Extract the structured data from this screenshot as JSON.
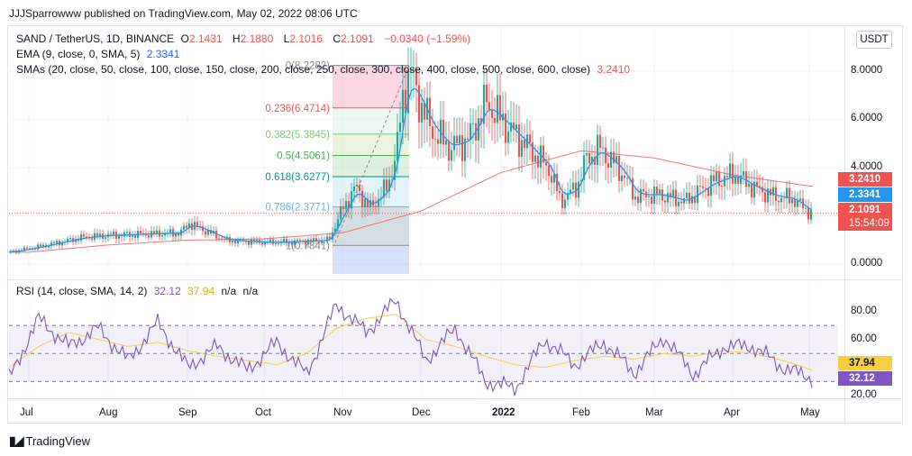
{
  "header_note": "JJJSparrowww published on TradingView.com, May 02, 2022 08:06 UTC",
  "legend": {
    "symbol": "SAND / TetherUS, 1D, BINANCE",
    "o_label": "O",
    "o_val": "2.1431",
    "h_label": "H",
    "h_val": "2.1880",
    "l_label": "L",
    "l_val": "2.1016",
    "c_label": "C",
    "c_val": "2.1091",
    "change": "−0.0340 (−1.59%)",
    "ema_label": "EMA (9, close, 0, SMA, 5)",
    "ema_val": "2.3341",
    "sma_label": "SMAs (20, close, 50, close, 100, close, 150, close, 200, close, 250, close, 300, close, 400, close, 500, close, 600, close)",
    "sma_val": "3.2410",
    "rsi_label": "RSI (14, close, SMA, 14, 2)",
    "rsi_val": "32.12",
    "rsi_ma_val": "37.94",
    "rsi_na1": "n/a",
    "rsi_na2": "n/a"
  },
  "currency_button": "USDT",
  "badges": {
    "sma": "3.2410",
    "ema": "2.3341",
    "price": "2.1091",
    "countdown": "15:54:09",
    "rsi_ma": "37.94",
    "rsi": "32.12"
  },
  "brand": "TradingView",
  "colors": {
    "up": "#26a69a",
    "down": "#ef5350",
    "ema": "#2196f3",
    "sma": "#ef5350",
    "rsi": "#7e57c2",
    "rsi_ma": "#f5d142",
    "rsi_band": "#ede7f6"
  },
  "chart_data": [
    {
      "type": "candlestick",
      "title": "SAND / TetherUS, 1D, BINANCE",
      "x_ticks": [
        "Jul",
        "Aug",
        "Sep",
        "Oct",
        "Nov",
        "Dec",
        "2022",
        "Feb",
        "Mar",
        "Apr",
        "May"
      ],
      "y_ticks": [
        "8.0000",
        "6.0000",
        "4.0000",
        "2.0000",
        "0.0000"
      ],
      "ylim": [
        -0.4,
        8.7
      ],
      "y_tick_values": [
        8,
        6,
        4,
        2,
        0
      ],
      "fibonacci": [
        {
          "label": "0(8.2282)",
          "value": 8.2282
        },
        {
          "label": "0.236(6.4714)",
          "value": 6.4714
        },
        {
          "label": "0.382(5.3845)",
          "value": 5.3845
        },
        {
          "label": "0.5(4.5061)",
          "value": 4.5061
        },
        {
          "label": "0.618(3.6277)",
          "value": 3.6277
        },
        {
          "label": "0.786(2.3771)",
          "value": 2.3771
        },
        {
          "label": "1(0.7841)",
          "value": 0.7841
        }
      ],
      "last_price": 2.1091,
      "series": [
        {
          "name": "Price",
          "x": [
            "Jul",
            "Aug",
            "Sep",
            "Oct",
            "Nov",
            "Dec",
            "2022",
            "Feb",
            "Mar",
            "Apr",
            "May"
          ],
          "values": [
            0.6,
            1.3,
            1.4,
            0.9,
            1.1,
            7.6,
            5.5,
            4.6,
            2.7,
            3.5,
            2.1
          ]
        },
        {
          "name": "EMA (9, close, 0, SMA, 5)",
          "values": [
            0.7,
            1.2,
            1.3,
            0.95,
            2.3,
            7.0,
            5.7,
            4.2,
            2.8,
            3.4,
            2.33
          ]
        },
        {
          "name": "SMAs",
          "values": [
            0.5,
            0.8,
            1.0,
            1.05,
            1.3,
            2.2,
            3.8,
            4.7,
            4.4,
            3.7,
            3.24
          ]
        }
      ]
    },
    {
      "type": "line",
      "title": "RSI (14, close, SMA, 14, 2)",
      "y_ticks": [
        "80.00",
        "60.00",
        "20.00"
      ],
      "y_tick_values": [
        80,
        60,
        20
      ],
      "ylim": [
        18,
        90
      ],
      "bands": [
        70,
        50,
        30
      ],
      "series": [
        {
          "name": "RSI",
          "values": [
            32,
            75,
            55,
            68,
            45,
            72,
            40,
            55,
            38,
            58,
            35,
            85,
            65,
            88,
            45,
            68,
            30,
            25,
            60,
            42,
            58,
            36,
            62,
            35,
            55,
            55,
            40,
            32
          ]
        },
        {
          "name": "RSI MA",
          "values": [
            40,
            55,
            65,
            60,
            55,
            58,
            52,
            48,
            45,
            42,
            50,
            68,
            75,
            78,
            60,
            55,
            48,
            42,
            40,
            45,
            48,
            46,
            50,
            48,
            52,
            50,
            45,
            38
          ]
        }
      ]
    }
  ]
}
